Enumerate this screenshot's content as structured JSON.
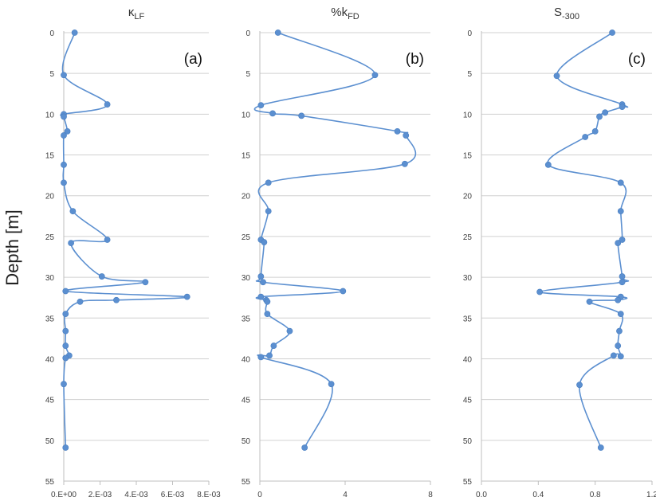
{
  "y_axis_label": "Depth [m]",
  "colors": {
    "series": "#5b8fd0",
    "marker": "#5b8fd0",
    "grid": "#d0d0d0",
    "axis": "#bfbfbf",
    "text": "#404040"
  },
  "chart_data": [
    {
      "type": "line",
      "title_main": "κ",
      "title_sub": "LF",
      "panel_label": "(a)",
      "xlabel": "",
      "ylabel": "Depth [m]",
      "xlim": [
        0,
        0.008
      ],
      "ylim": [
        55,
        0
      ],
      "y_reversed": true,
      "grid": true,
      "x_ticks": [
        "0.E+00",
        "2.E-03",
        "4.E-03",
        "6.E-03",
        "8.E-03"
      ],
      "y_ticks": [
        0,
        5,
        10,
        15,
        20,
        25,
        30,
        35,
        40,
        45,
        50,
        55
      ],
      "points": [
        {
          "x": 0.0006,
          "y": 0.0
        },
        {
          "x": 0.0,
          "y": 5.2
        },
        {
          "x": 0.0024,
          "y": 8.8
        },
        {
          "x": 0.0,
          "y": 10.0
        },
        {
          "x": 0.0,
          "y": 10.3
        },
        {
          "x": 0.0002,
          "y": 12.1
        },
        {
          "x": 0.0,
          "y": 12.6
        },
        {
          "x": 0.0,
          "y": 16.2
        },
        {
          "x": 0.0,
          "y": 18.4
        },
        {
          "x": 0.0005,
          "y": 21.9
        },
        {
          "x": 0.0024,
          "y": 25.4
        },
        {
          "x": 0.0004,
          "y": 25.8
        },
        {
          "x": 0.0021,
          "y": 29.9
        },
        {
          "x": 0.0045,
          "y": 30.6
        },
        {
          "x": 0.0001,
          "y": 31.7
        },
        {
          "x": 0.0068,
          "y": 32.4
        },
        {
          "x": 0.0029,
          "y": 32.8
        },
        {
          "x": 0.0009,
          "y": 33.0
        },
        {
          "x": 0.0001,
          "y": 34.5
        },
        {
          "x": 0.0001,
          "y": 36.6
        },
        {
          "x": 0.0001,
          "y": 38.4
        },
        {
          "x": 0.0003,
          "y": 39.6
        },
        {
          "x": 0.0001,
          "y": 39.9
        },
        {
          "x": 0.0,
          "y": 43.1
        },
        {
          "x": 0.0001,
          "y": 50.9
        }
      ]
    },
    {
      "type": "line",
      "title_main": "%k",
      "title_sub": "FD",
      "panel_label": "(b)",
      "xlabel": "",
      "ylabel": "Depth [m]",
      "xlim": [
        0,
        8
      ],
      "ylim": [
        55,
        0
      ],
      "y_reversed": true,
      "grid": true,
      "x_ticks": [
        "0",
        "4",
        "8"
      ],
      "y_ticks": [
        0,
        5,
        10,
        15,
        20,
        25,
        30,
        35,
        40,
        45,
        50,
        55
      ],
      "points": [
        {
          "x": 0.85,
          "y": 0.0
        },
        {
          "x": 5.4,
          "y": 5.2
        },
        {
          "x": 0.05,
          "y": 8.9
        },
        {
          "x": 0.6,
          "y": 9.9
        },
        {
          "x": 1.95,
          "y": 10.2
        },
        {
          "x": 6.45,
          "y": 12.1
        },
        {
          "x": 6.85,
          "y": 12.6
        },
        {
          "x": 6.8,
          "y": 16.1
        },
        {
          "x": 0.4,
          "y": 18.4
        },
        {
          "x": 0.4,
          "y": 21.9
        },
        {
          "x": 0.05,
          "y": 25.4
        },
        {
          "x": 0.2,
          "y": 25.7
        },
        {
          "x": 0.05,
          "y": 29.9
        },
        {
          "x": 0.15,
          "y": 30.6
        },
        {
          "x": 3.9,
          "y": 31.7
        },
        {
          "x": 0.05,
          "y": 32.4
        },
        {
          "x": 0.3,
          "y": 32.8
        },
        {
          "x": 0.35,
          "y": 33.0
        },
        {
          "x": 0.35,
          "y": 34.5
        },
        {
          "x": 1.4,
          "y": 36.6
        },
        {
          "x": 0.65,
          "y": 38.4
        },
        {
          "x": 0.45,
          "y": 39.6
        },
        {
          "x": 0.05,
          "y": 39.8
        },
        {
          "x": 3.35,
          "y": 43.1
        },
        {
          "x": 2.1,
          "y": 50.9
        }
      ]
    },
    {
      "type": "line",
      "title_main": "S",
      "title_sub": "-300",
      "panel_label": "(c)",
      "xlabel": "",
      "ylabel": "Depth [m]",
      "xlim": [
        0,
        1.2
      ],
      "ylim": [
        55,
        0
      ],
      "y_reversed": true,
      "grid": true,
      "x_ticks": [
        "0.0",
        "0.4",
        "0.8",
        "1.2"
      ],
      "y_ticks": [
        0,
        5,
        10,
        15,
        20,
        25,
        30,
        35,
        40,
        45,
        50,
        55
      ],
      "points": [
        {
          "x": 0.92,
          "y": 0.0
        },
        {
          "x": 0.53,
          "y": 5.3
        },
        {
          "x": 0.99,
          "y": 8.8
        },
        {
          "x": 0.99,
          "y": 9.1
        },
        {
          "x": 0.87,
          "y": 9.8
        },
        {
          "x": 0.83,
          "y": 10.3
        },
        {
          "x": 0.8,
          "y": 12.1
        },
        {
          "x": 0.73,
          "y": 12.8
        },
        {
          "x": 0.47,
          "y": 16.2
        },
        {
          "x": 0.98,
          "y": 18.4
        },
        {
          "x": 0.98,
          "y": 21.9
        },
        {
          "x": 0.99,
          "y": 25.4
        },
        {
          "x": 0.96,
          "y": 25.8
        },
        {
          "x": 0.99,
          "y": 29.9
        },
        {
          "x": 0.99,
          "y": 30.6
        },
        {
          "x": 0.41,
          "y": 31.8
        },
        {
          "x": 0.98,
          "y": 32.4
        },
        {
          "x": 0.96,
          "y": 32.8
        },
        {
          "x": 0.76,
          "y": 33.0
        },
        {
          "x": 0.98,
          "y": 34.5
        },
        {
          "x": 0.97,
          "y": 36.6
        },
        {
          "x": 0.96,
          "y": 38.4
        },
        {
          "x": 0.98,
          "y": 39.7
        },
        {
          "x": 0.93,
          "y": 39.6
        },
        {
          "x": 0.69,
          "y": 43.2
        },
        {
          "x": 0.84,
          "y": 50.9
        }
      ]
    }
  ]
}
